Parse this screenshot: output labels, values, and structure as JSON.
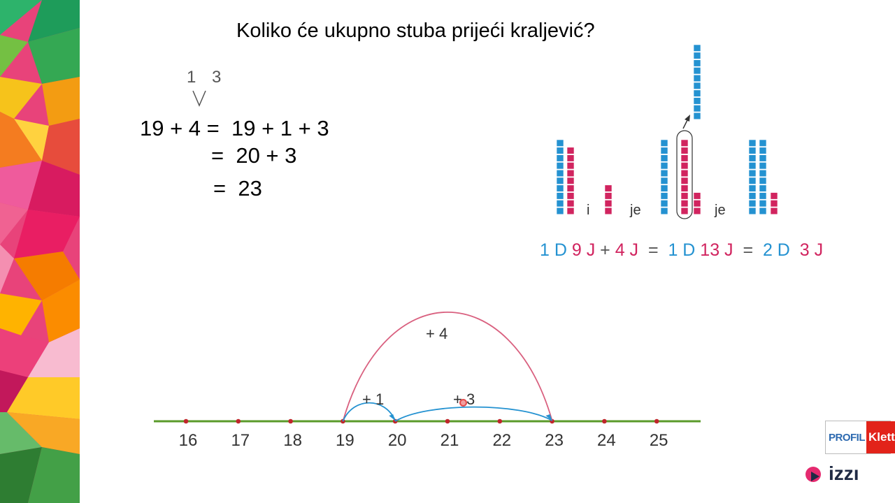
{
  "slide": {
    "title": "Koliko će ukupno stuba prijeći kraljević?",
    "decomposition": "1 3",
    "equations": [
      "19 + 4 =  19 + 1 + 3",
      "=  20 + 3",
      "=  23"
    ],
    "blocks": {
      "word_i": "i",
      "word_je_1": "je",
      "word_je_2": "je",
      "group1": {
        "tens": 1,
        "ones": 9
      },
      "group2": {
        "ones": 4
      },
      "group3": {
        "tens": 1,
        "ones": 13
      },
      "group4": {
        "tens": 2,
        "ones": 3
      }
    },
    "place_value": [
      {
        "text": "1 D",
        "color": "blue"
      },
      {
        "text": " 9 J",
        "color": "pink"
      },
      {
        "text": " + ",
        "color": "gray"
      },
      {
        "text": "4 J",
        "color": "pink"
      },
      {
        "text": "  =  ",
        "color": "gray"
      },
      {
        "text": "1 D",
        "color": "blue"
      },
      {
        "text": " 13 J",
        "color": "pink"
      },
      {
        "text": "  =  ",
        "color": "gray"
      },
      {
        "text": "2 D",
        "color": "blue"
      },
      {
        "text": "  3 J",
        "color": "pink"
      }
    ],
    "number_line": {
      "ticks": [
        "16",
        "17",
        "18",
        "19",
        "20",
        "21",
        "22",
        "23",
        "24",
        "25"
      ],
      "jumps": {
        "big": "+ 4",
        "small1": "+ 1",
        "small2": "+ 3"
      }
    },
    "logos": {
      "profil": "PROFIL",
      "klett": "Klett",
      "izzi": "izzı"
    },
    "colors": {
      "blue": "#2492d1",
      "pink": "#d1245f",
      "line": "#5a9a2a",
      "dot": "#c0262c"
    }
  }
}
